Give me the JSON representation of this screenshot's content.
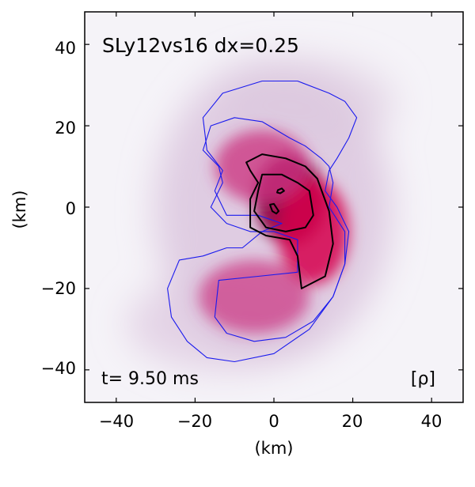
{
  "chart_data": {
    "type": "heatmap",
    "title": "SLy12vs16 dx=0.25",
    "xlabel": "(km)",
    "ylabel": "(km)",
    "xlim": [
      -48,
      48
    ],
    "ylim": [
      -48,
      48
    ],
    "xticks": [
      -40,
      -20,
      0,
      20,
      40
    ],
    "yticks": [
      -40,
      -20,
      0,
      20,
      40
    ],
    "xtick_labels": [
      "−40",
      "−20",
      "0",
      "20",
      "40"
    ],
    "ytick_labels": [
      "−40",
      "−20",
      "0",
      "20",
      "40"
    ],
    "time_label": "t= 9.50 ms",
    "field_label": "[ρ]",
    "colormap": [
      "#f5f3f8",
      "#d8b8d8",
      "#cc3380",
      "#d6004c",
      "#8a0040"
    ],
    "contour_colors": {
      "outer": "#1a1aee",
      "inner": "#000000"
    },
    "density_blobs": [
      {
        "cx": 4,
        "cy": 2,
        "rx": 9,
        "ry": 11,
        "level": 0.95
      },
      {
        "cx": 10,
        "cy": -6,
        "rx": 9,
        "ry": 13,
        "level": 0.8
      },
      {
        "cx": -3,
        "cy": 10,
        "rx": 12,
        "ry": 9,
        "level": 0.65
      },
      {
        "cx": -5,
        "cy": -22,
        "rx": 14,
        "ry": 9,
        "level": 0.5
      }
    ],
    "contours": [
      {
        "name": "outer-low-density",
        "color": "blue",
        "points": [
          [
            -27,
            -20
          ],
          [
            -24,
            -13
          ],
          [
            -18,
            -12
          ],
          [
            -12,
            -10
          ],
          [
            -8,
            -10
          ],
          [
            -3,
            -6
          ],
          [
            2,
            -4
          ],
          [
            -4,
            -2
          ],
          [
            -12,
            -2
          ],
          [
            -15,
            4
          ],
          [
            -13,
            9
          ],
          [
            -17,
            14
          ],
          [
            -18,
            22
          ],
          [
            -13,
            28
          ],
          [
            -3,
            31
          ],
          [
            6,
            31
          ],
          [
            14,
            28
          ],
          [
            18,
            26
          ],
          [
            21,
            22
          ],
          [
            19,
            17
          ],
          [
            16,
            12
          ],
          [
            14,
            9
          ],
          [
            13,
            4
          ],
          [
            16,
            0
          ],
          [
            19,
            -6
          ],
          [
            18,
            -14
          ],
          [
            15,
            -22
          ],
          [
            9,
            -30
          ],
          [
            0,
            -36
          ],
          [
            -10,
            -38
          ],
          [
            -17,
            -37
          ],
          [
            -22,
            -33
          ],
          [
            -26,
            -27
          ]
        ]
      },
      {
        "name": "mid-low-density",
        "color": "blue",
        "points": [
          [
            -14,
            -18
          ],
          [
            -4,
            -17
          ],
          [
            6,
            -16
          ],
          [
            6,
            -8
          ],
          [
            0,
            -6
          ],
          [
            -6,
            -6
          ],
          [
            -12,
            -4
          ],
          [
            -16,
            0
          ],
          [
            -13,
            6
          ],
          [
            -14,
            10
          ],
          [
            -18,
            14
          ],
          [
            -16,
            20
          ],
          [
            -10,
            22
          ],
          [
            -3,
            21
          ],
          [
            4,
            17
          ],
          [
            8,
            15
          ],
          [
            12,
            12
          ],
          [
            14,
            10
          ],
          [
            15,
            6
          ],
          [
            14,
            0
          ],
          [
            18,
            -6
          ],
          [
            18,
            -14
          ],
          [
            15,
            -22
          ],
          [
            10,
            -28
          ],
          [
            3,
            -32
          ],
          [
            -5,
            -33
          ],
          [
            -12,
            -31
          ],
          [
            -15,
            -27
          ]
        ]
      },
      {
        "name": "outer-high-density",
        "color": "black",
        "points": [
          [
            -6,
            9
          ],
          [
            -7,
            11
          ],
          [
            -3,
            13
          ],
          [
            3,
            12
          ],
          [
            8,
            10
          ],
          [
            11,
            7
          ],
          [
            14,
            -1
          ],
          [
            15,
            -9
          ],
          [
            13,
            -17
          ],
          [
            7,
            -20
          ],
          [
            6,
            -12
          ],
          [
            4,
            -8
          ],
          [
            -2,
            -7
          ],
          [
            -6,
            -5
          ],
          [
            -6,
            2
          ],
          [
            -4,
            6
          ]
        ]
      },
      {
        "name": "inner-high-density",
        "color": "black",
        "points": [
          [
            -4,
            4
          ],
          [
            -3,
            8
          ],
          [
            2,
            8
          ],
          [
            6,
            6
          ],
          [
            9,
            4
          ],
          [
            10,
            -2
          ],
          [
            8,
            -5
          ],
          [
            3,
            -6
          ],
          [
            -2,
            -5
          ],
          [
            -5,
            -1
          ]
        ]
      },
      {
        "name": "core-peak-1",
        "color": "black",
        "points": [
          [
            1,
            4.2
          ],
          [
            2,
            4.6
          ],
          [
            2.6,
            4
          ],
          [
            1.6,
            3.4
          ],
          [
            0.8,
            3.6
          ]
        ]
      },
      {
        "name": "core-peak-2",
        "color": "black",
        "points": [
          [
            -1,
            0.6
          ],
          [
            0,
            0.8
          ],
          [
            1.2,
            -1
          ],
          [
            0.6,
            -1.6
          ],
          [
            -0.4,
            -1
          ]
        ]
      }
    ]
  }
}
